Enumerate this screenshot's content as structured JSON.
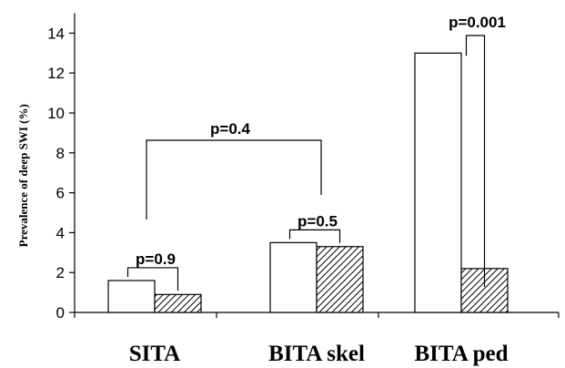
{
  "chart_data": {
    "type": "bar",
    "title": "",
    "xlabel": "",
    "ylabel": "Prevalence of deep SWI (%)",
    "ylim": [
      0,
      15
    ],
    "yticks": [
      0,
      2,
      4,
      6,
      8,
      10,
      12,
      14
    ],
    "categories": [
      "SITA",
      "BITA skel",
      "BITA ped"
    ],
    "series": [
      {
        "values": [
          1.6,
          3.5,
          13.0
        ],
        "fill": "#ffffff"
      },
      {
        "values": [
          0.9,
          3.3,
          2.2
        ],
        "fill": "hatched"
      }
    ],
    "annotations": [
      {
        "text": "p=0.9",
        "category": 0
      },
      {
        "text": "p=0.5",
        "category": 1
      },
      {
        "text": "p=0.001",
        "category": 2
      },
      {
        "text": "p=0.4",
        "from_category": 0,
        "to_category": 1
      }
    ],
    "grid": false,
    "legend": "none"
  }
}
